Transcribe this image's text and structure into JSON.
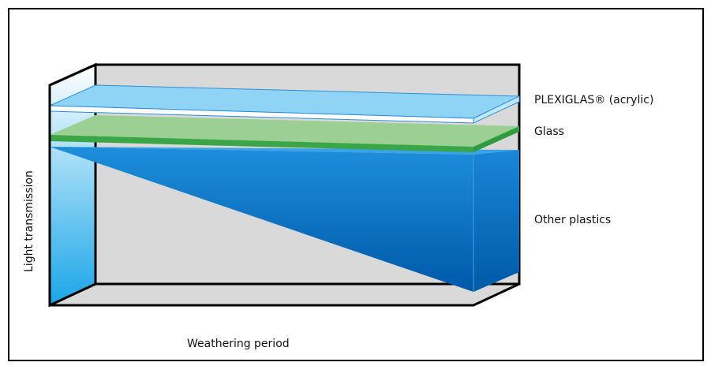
{
  "labels": {
    "plexiglas": "PLEXIGLAS® (acrylic)",
    "glass": "Glass",
    "other_plastics": "Other plastics",
    "x_axis": "Weathering period",
    "y_axis": "Light transmission"
  },
  "colors": {
    "box_fill": "#d9d9d9",
    "plexiglas": "#8fd3f5",
    "glass": "#9ccf93",
    "glass_edge": "#3aa648",
    "plastics_dark": "#005eb0",
    "plastics_light": "#1a9be3"
  }
}
